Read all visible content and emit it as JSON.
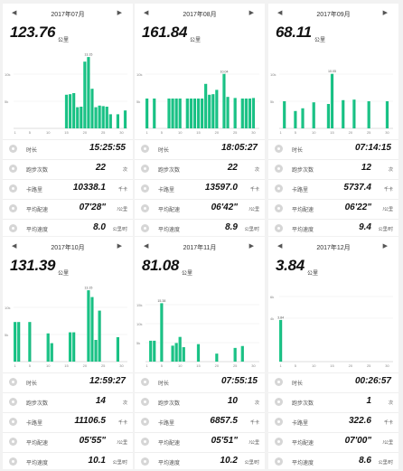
{
  "icons": {
    "prev": "chevron-left-icon",
    "next": "chevron-right-icon",
    "stat": "stat-icon"
  },
  "colors": {
    "bar": "#1dc88a",
    "bar_dark": "#0f9d6a",
    "grid": "#eeeeee",
    "axis": "#bbbbbb"
  },
  "cards": [
    {
      "month": "2017年07月",
      "total": "123.76",
      "total_unit": "公里",
      "rows": [
        {
          "label": "时长",
          "value": "15:25:55",
          "unit": ""
        },
        {
          "label": "跑步次数",
          "value": "22",
          "unit": "次"
        },
        {
          "label": "卡路里",
          "value": "10338.1",
          "unit": "千卡"
        },
        {
          "label": "平均配速",
          "value": "07'28\"",
          "unit": "/公里"
        },
        {
          "label": "平均速度",
          "value": "8.0",
          "unit": "公里/时"
        }
      ]
    },
    {
      "month": "2017年08月",
      "total": "161.84",
      "total_unit": "公里",
      "rows": [
        {
          "label": "时长",
          "value": "18:05:27",
          "unit": ""
        },
        {
          "label": "跑步次数",
          "value": "22",
          "unit": "次"
        },
        {
          "label": "卡路里",
          "value": "13597.0",
          "unit": "千卡"
        },
        {
          "label": "平均配速",
          "value": "06'42\"",
          "unit": "/公里"
        },
        {
          "label": "平均速度",
          "value": "8.9",
          "unit": "公里/时"
        }
      ]
    },
    {
      "month": "2017年09月",
      "total": "68.11",
      "total_unit": "公里",
      "rows": [
        {
          "label": "时长",
          "value": "07:14:15",
          "unit": ""
        },
        {
          "label": "跑步次数",
          "value": "12",
          "unit": "次"
        },
        {
          "label": "卡路里",
          "value": "5737.4",
          "unit": "千卡"
        },
        {
          "label": "平均配速",
          "value": "06'22\"",
          "unit": "/公里"
        },
        {
          "label": "平均速度",
          "value": "9.4",
          "unit": "公里/时"
        }
      ]
    },
    {
      "month": "2017年10月",
      "total": "131.39",
      "total_unit": "公里",
      "rows": [
        {
          "label": "时长",
          "value": "12:59:27",
          "unit": ""
        },
        {
          "label": "跑步次数",
          "value": "14",
          "unit": "次"
        },
        {
          "label": "卡路里",
          "value": "11106.5",
          "unit": "千卡"
        },
        {
          "label": "平均配速",
          "value": "05'55\"",
          "unit": "/公里"
        },
        {
          "label": "平均速度",
          "value": "10.1",
          "unit": "公里/时"
        }
      ]
    },
    {
      "month": "2017年11月",
      "total": "81.08",
      "total_unit": "公里",
      "rows": [
        {
          "label": "时长",
          "value": "07:55:15",
          "unit": ""
        },
        {
          "label": "跑步次数",
          "value": "10",
          "unit": "次"
        },
        {
          "label": "卡路里",
          "value": "6857.5",
          "unit": "千卡"
        },
        {
          "label": "平均配速",
          "value": "05'51\"",
          "unit": "/公里"
        },
        {
          "label": "平均速度",
          "value": "10.2",
          "unit": "公里/时"
        }
      ]
    },
    {
      "month": "2017年12月",
      "total": "3.84",
      "total_unit": "公里",
      "rows": [
        {
          "label": "时长",
          "value": "00:26:57",
          "unit": ""
        },
        {
          "label": "跑步次数",
          "value": "1",
          "unit": "次"
        },
        {
          "label": "卡路里",
          "value": "322.6",
          "unit": "千卡"
        },
        {
          "label": "平均配速",
          "value": "07'00\"",
          "unit": "/公里"
        },
        {
          "label": "平均速度",
          "value": "8.6",
          "unit": "公里/时"
        }
      ]
    }
  ],
  "chart_data": [
    {
      "type": "bar",
      "title": "2017年07月",
      "yticks": [
        "10k",
        "5k"
      ],
      "ylim": [
        0,
        14000
      ],
      "xticks": [
        "1",
        "5",
        "10",
        "15",
        "20",
        "25",
        "30"
      ],
      "peak_label": "13.15",
      "days": [
        15,
        16,
        17,
        18,
        19,
        20,
        21,
        22,
        23,
        24,
        25,
        26,
        27,
        29,
        31
      ],
      "values": [
        6200,
        6300,
        6500,
        3900,
        4000,
        12300,
        13150,
        7300,
        3900,
        4200,
        4100,
        4000,
        2600,
        2600,
        3300
      ]
    },
    {
      "type": "bar",
      "title": "2017年08月",
      "yticks": [
        "10k",
        "5k"
      ],
      "ylim": [
        0,
        14000
      ],
      "xticks": [
        "1",
        "5",
        "10",
        "15",
        "20",
        "25",
        "30"
      ],
      "peak_label": "10.04",
      "days": [
        1,
        3,
        7,
        8,
        9,
        10,
        12,
        13,
        14,
        15,
        16,
        17,
        18,
        19,
        20,
        22,
        23,
        25,
        27,
        28,
        29,
        30
      ],
      "values": [
        5500,
        5500,
        5500,
        5500,
        5500,
        5500,
        5500,
        5500,
        5500,
        5500,
        5500,
        8200,
        6200,
        6300,
        7100,
        10040,
        5800,
        5600,
        5500,
        5500,
        5500,
        5600
      ]
    },
    {
      "type": "bar",
      "title": "2017年09月",
      "yticks": [
        "10k",
        "5k"
      ],
      "ylim": [
        0,
        14000
      ],
      "xticks": [
        "1",
        "5",
        "10",
        "15",
        "20",
        "25",
        "30"
      ],
      "peak_label": "10.05",
      "days": [
        2,
        5,
        7,
        10,
        14,
        15,
        18,
        21,
        25,
        30
      ],
      "values": [
        5000,
        3200,
        3700,
        4800,
        4500,
        10050,
        5200,
        5300,
        5000,
        5000
      ]
    },
    {
      "type": "bar",
      "title": "2017年10月",
      "yticks": [
        "10k",
        "5k"
      ],
      "ylim": [
        0,
        14000
      ],
      "xticks": [
        "1",
        "5",
        "10",
        "15",
        "20",
        "25",
        "30"
      ],
      "peak_label": "13.15",
      "days": [
        1,
        2,
        5,
        10,
        11,
        16,
        17,
        21,
        22,
        23,
        24,
        29
      ],
      "values": [
        7300,
        7300,
        7300,
        5200,
        3400,
        5400,
        5400,
        13150,
        11900,
        4000,
        9400,
        4500
      ]
    },
    {
      "type": "bar",
      "title": "2017年11月",
      "yticks": [
        "15k",
        "10k",
        "5k"
      ],
      "ylim": [
        0,
        20000
      ],
      "xticks": [
        "1",
        "5",
        "10",
        "15",
        "20",
        "25",
        "30"
      ],
      "peak_label": "15.38",
      "days": [
        2,
        3,
        5,
        8,
        9,
        10,
        11,
        15,
        20,
        25,
        27
      ],
      "values": [
        5500,
        5500,
        15380,
        4200,
        4900,
        6500,
        3800,
        4600,
        2100,
        3600,
        4100
      ]
    },
    {
      "type": "bar",
      "title": "2017年12月",
      "yticks": [
        "6k",
        "4k"
      ],
      "ylim": [
        0,
        7000
      ],
      "xticks": [
        "1",
        "5",
        "10",
        "15",
        "20",
        "25",
        "30"
      ],
      "peak_label": "3.84",
      "days": [
        1
      ],
      "values": [
        3840
      ]
    }
  ]
}
